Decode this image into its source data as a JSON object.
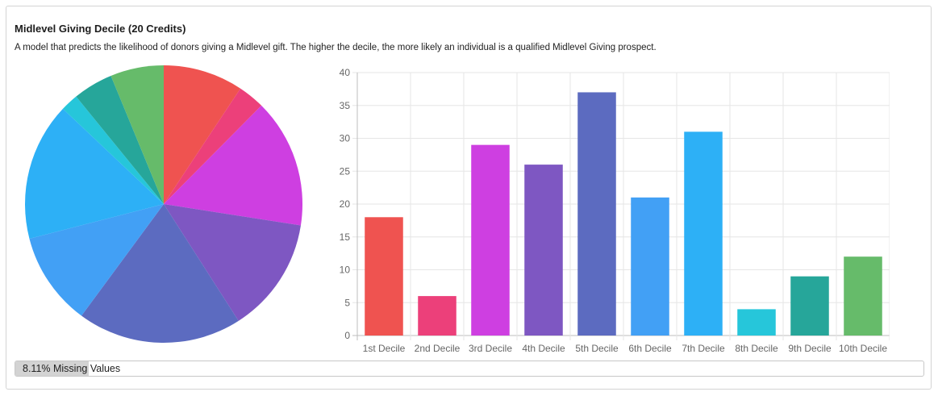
{
  "header": {
    "title": "Midlevel Giving Decile (20 Credits)",
    "description": "A model that predicts the likelihood of donors giving a Midlevel gift. The higher the decile, the more likely an individual is a qualified Midlevel Giving prospect."
  },
  "colors": [
    "#ef5350",
    "#ec407a",
    "#ce3fe1",
    "#7e57c2",
    "#5c6bc0",
    "#42a0f5",
    "#2db0f6",
    "#26c6da",
    "#26a69a",
    "#66bb6a"
  ],
  "chart_data": [
    {
      "type": "pie",
      "categories": [
        "1st Decile",
        "2nd Decile",
        "3rd Decile",
        "4th Decile",
        "5th Decile",
        "6th Decile",
        "7th Decile",
        "8th Decile",
        "9th Decile",
        "10th Decile"
      ],
      "values": [
        18,
        6,
        29,
        26,
        37,
        21,
        31,
        4,
        9,
        12
      ],
      "start": "top",
      "direction": "clockwise"
    },
    {
      "type": "bar",
      "categories": [
        "1st Decile",
        "2nd Decile",
        "3rd Decile",
        "4th Decile",
        "5th Decile",
        "6th Decile",
        "7th Decile",
        "8th Decile",
        "9th Decile",
        "10th Decile"
      ],
      "values": [
        18,
        6,
        29,
        26,
        37,
        21,
        31,
        4,
        9,
        12
      ],
      "yticks": [
        0,
        5,
        10,
        15,
        20,
        25,
        30,
        35,
        40
      ],
      "ylim": [
        0,
        40
      ],
      "grid": true
    }
  ],
  "missing": {
    "label": "8.11% Missing Values",
    "fraction": 0.0811
  }
}
